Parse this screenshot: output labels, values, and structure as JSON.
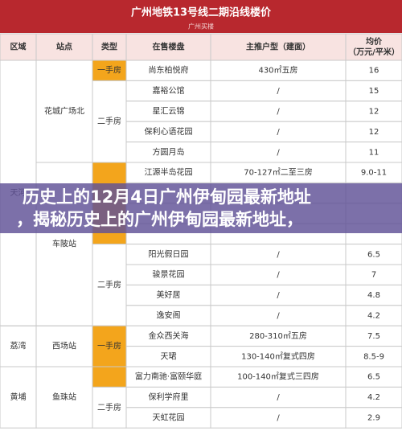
{
  "header": {
    "title": "广州地铁13号线二期沿线楼价",
    "brand": "广州买楼"
  },
  "table": {
    "columns": [
      "区域",
      "站点",
      "类型",
      "在售楼盘",
      "主推户型（建面）",
      [
        "均价",
        "（万元/平米）"
      ]
    ],
    "regions": [
      {
        "name": "天河",
        "stations": [
          {
            "name": "花城广场北",
            "types": [
              {
                "name": "一手房",
                "fill": "#f3a51c",
                "rows": [
                  [
                    "尚东柏悦府",
                    "430㎡五房",
                    "16"
                  ]
                ]
              },
              {
                "name": "二手房",
                "fill": "#ffffff",
                "rows": [
                  [
                    "嘉裕公馆",
                    "/",
                    "15"
                  ],
                  [
                    "星汇云锦",
                    "/",
                    "12"
                  ],
                  [
                    "保利心语花园",
                    "/",
                    "12"
                  ],
                  [
                    "方圆月岛",
                    "/",
                    "11"
                  ]
                ]
              }
            ]
          },
          {
            "name": "车陂站",
            "types": [
              {
                "fill": "#f3a51c",
                "rows": [
                  [
                    "江源半岛花园",
                    "70-127㎡二至三房",
                    "9.0-11"
                  ]
                ]
              },
              {
                "name": "二手房",
                "fill": "#ffffff",
                "rows": [
                  [
                    "阳光假日园",
                    "/",
                    "6.5"
                  ],
                  [
                    "骏景花园",
                    "/",
                    "7"
                  ],
                  [
                    "美好居",
                    "/",
                    "4.8"
                  ],
                  [
                    "逸安阁",
                    "/",
                    "4.2"
                  ]
                ]
              }
            ]
          }
        ]
      },
      {
        "name": "荔湾",
        "stations": [
          {
            "name": "西场站",
            "types": [
              {
                "name": "一手房",
                "fill": "#f3a51c",
                "rows": [
                  [
                    "金众西关海",
                    "280-310㎡五房",
                    "7.5"
                  ],
                  [
                    "天珺",
                    "130-140㎡复式四房",
                    "8.5-9"
                  ]
                ]
              }
            ]
          }
        ]
      },
      {
        "name": "黄埔",
        "stations": [
          {
            "name": "鱼珠站",
            "types": [
              {
                "fill": "#f3a51c",
                "rows": [
                  [
                    "富力南驰·富颐华庭",
                    "100-140㎡复式三四房",
                    "6.5"
                  ]
                ]
              },
              {
                "name": "二手房",
                "fill": "#ffffff",
                "rows": [
                  [
                    "保利学府里",
                    "/",
                    "4.2"
                  ],
                  [
                    "天虹花园",
                    "/",
                    "2.9"
                  ]
                ]
              }
            ]
          }
        ]
      }
    ]
  },
  "banner": {
    "lines": [
      "历史上的12月4日广州伊甸园最新地址",
      "，揭秘历史上的广州伊甸园最新地址，"
    ]
  }
}
